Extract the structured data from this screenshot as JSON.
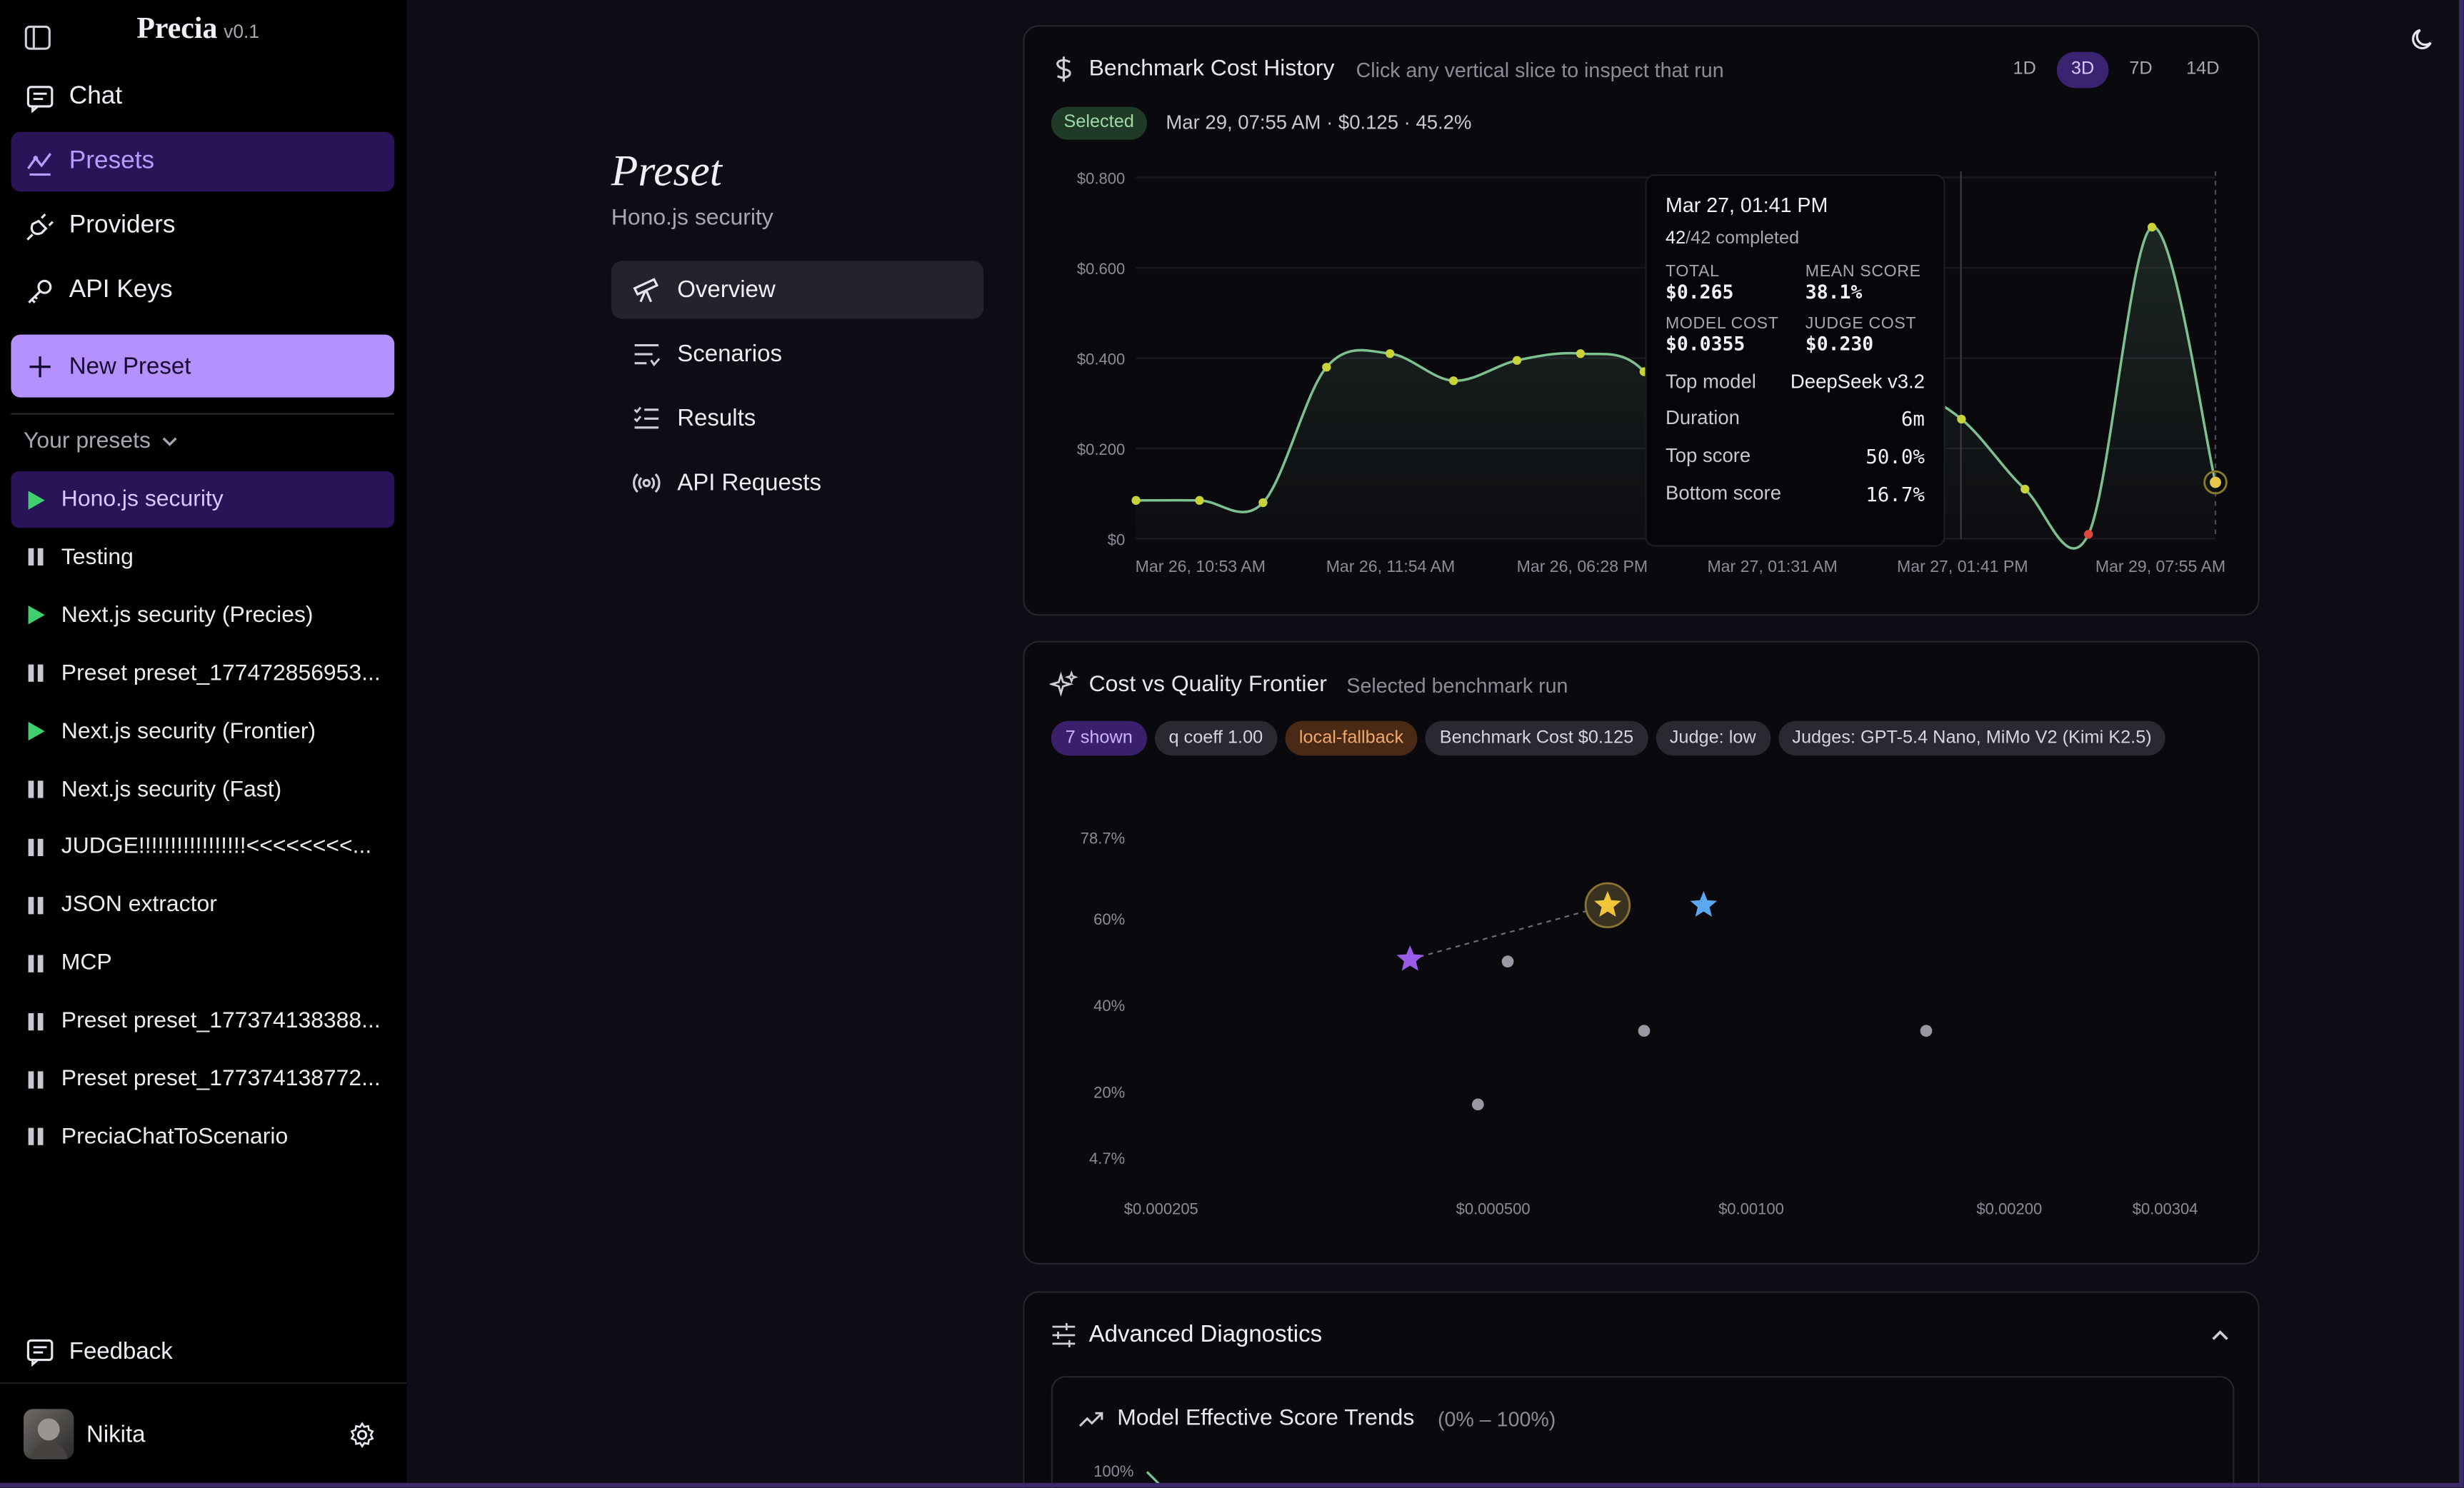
{
  "sidebar": {
    "brand": "Precia",
    "version": "v0.1",
    "nav": [
      {
        "label": "Chat",
        "icon": "chat-icon"
      },
      {
        "label": "Presets",
        "icon": "presets-icon"
      },
      {
        "label": "Providers",
        "icon": "plug-icon"
      },
      {
        "label": "API Keys",
        "icon": "key-icon"
      }
    ],
    "new_preset": "New Preset",
    "your_presets": "Your presets",
    "presets": [
      {
        "label": "Hono.js security",
        "state": "running"
      },
      {
        "label": "Testing",
        "state": "paused"
      },
      {
        "label": "Next.js security (Precies)",
        "state": "running"
      },
      {
        "label": "Preset preset_177472856953...",
        "state": "paused"
      },
      {
        "label": "Next.js security (Frontier)",
        "state": "running"
      },
      {
        "label": "Next.js security (Fast)",
        "state": "paused"
      },
      {
        "label": "JUDGE!!!!!!!!!!!!!!!!!<<<<<<<<...",
        "state": "paused"
      },
      {
        "label": "JSON extractor",
        "state": "paused"
      },
      {
        "label": "MCP",
        "state": "paused"
      },
      {
        "label": "Preset preset_177374138388...",
        "state": "paused"
      },
      {
        "label": "Preset preset_177374138772...",
        "state": "paused"
      },
      {
        "label": "PreciaChatToScenario",
        "state": "paused"
      }
    ],
    "feedback": "Feedback",
    "user": "Nikita"
  },
  "preset": {
    "heading": "Preset",
    "name": "Hono.js security",
    "tabs": [
      "Overview",
      "Scenarios",
      "Results",
      "API Requests"
    ]
  },
  "cost_history": {
    "title": "Benchmark Cost History",
    "hint": "Click any vertical slice to inspect that run",
    "ranges": [
      "1D",
      "3D",
      "7D",
      "14D"
    ],
    "active_range": "3D",
    "selected_badge": "Selected",
    "selected_text": "Mar 29, 07:55 AM · $0.125 · 45.2%",
    "tooltip": {
      "date": "Mar 27, 01:41 PM",
      "completed_num": "42",
      "completed_rest": "/42 completed",
      "total_label": "TOTAL",
      "total": "$0.265",
      "mean_label": "MEAN SCORE",
      "mean": "38.1%",
      "model_cost_label": "MODEL COST",
      "model_cost": "$0.0355",
      "judge_cost_label": "JUDGE COST",
      "judge_cost": "$0.230",
      "rows": [
        {
          "k": "Top model",
          "v": "DeepSeek v3.2"
        },
        {
          "k": "Duration",
          "v": "6m"
        },
        {
          "k": "Top score",
          "v": "50.0%"
        },
        {
          "k": "Bottom score",
          "v": "16.7%"
        }
      ]
    }
  },
  "frontier": {
    "title": "Cost vs Quality Frontier",
    "subtitle": "Selected benchmark run",
    "chips": [
      "7 shown",
      "q coeff 1.00",
      "local-fallback",
      "Benchmark Cost $0.125",
      "Judge: low",
      "Judges: GPT-5.4 Nano, MiMo V2 (Kimi K2.5)"
    ]
  },
  "diagnostics": {
    "title": "Advanced Diagnostics",
    "trends_title": "Model Effective Score Trends",
    "trends_range": "(0% – 100%)",
    "trends_top_tick": "100%"
  },
  "chart_data": [
    {
      "type": "line",
      "title": "Benchmark Cost History",
      "x_tick_labels": [
        "Mar 26, 10:53 AM",
        "Mar 26, 11:54 AM",
        "Mar 26, 06:28 PM",
        "Mar 27, 01:31 AM",
        "Mar 27, 01:41 PM",
        "Mar 29, 07:55 AM"
      ],
      "y_tick_labels": [
        "$0",
        "$0.200",
        "$0.400",
        "$0.600",
        "$0.800"
      ],
      "ylim": [
        0,
        0.8
      ],
      "points": [
        {
          "i": 0,
          "y": 0.085
        },
        {
          "i": 1,
          "y": 0.085
        },
        {
          "i": 2,
          "y": 0.08
        },
        {
          "i": 3,
          "y": 0.38
        },
        {
          "i": 4,
          "y": 0.41
        },
        {
          "i": 5,
          "y": 0.35
        },
        {
          "i": 6,
          "y": 0.395
        },
        {
          "i": 7,
          "y": 0.41
        },
        {
          "i": 8,
          "y": 0.37
        },
        {
          "i": 9,
          "y": 0.1
        },
        {
          "i": 10,
          "y": 0.13
        },
        {
          "i": 11,
          "y": 0.35
        },
        {
          "i": 12,
          "y": 0.34
        },
        {
          "i": 13,
          "y": 0.265
        },
        {
          "i": 14,
          "y": 0.11
        },
        {
          "i": 15,
          "y": 0.01
        },
        {
          "i": 16,
          "y": 0.69
        },
        {
          "i": 17,
          "y": 0.125
        }
      ]
    },
    {
      "type": "scatter",
      "title": "Cost vs Quality Frontier",
      "x_tick_labels": [
        "$0.000205",
        "$0.000500",
        "$0.00100",
        "$0.00200",
        "$0.00304"
      ],
      "y_tick_labels": [
        "4.7%",
        "20%",
        "40%",
        "60%",
        "78.7%"
      ],
      "x_scale": "log",
      "xlim": [
        0.000205,
        0.00304
      ],
      "ylim": [
        4.7,
        78.7
      ],
      "points": [
        {
          "x": 0.0004,
          "y": 50.5,
          "kind": "star-purple"
        },
        {
          "x": 0.00052,
          "y": 50.0,
          "kind": "dot"
        },
        {
          "x": 0.00068,
          "y": 63.0,
          "kind": "star-gold"
        },
        {
          "x": 0.00048,
          "y": 17.0,
          "kind": "dot"
        },
        {
          "x": 0.00075,
          "y": 34.0,
          "kind": "dot"
        },
        {
          "x": 0.00088,
          "y": 63.0,
          "kind": "star-blue"
        },
        {
          "x": 0.0016,
          "y": 34.0,
          "kind": "dot"
        }
      ]
    }
  ]
}
